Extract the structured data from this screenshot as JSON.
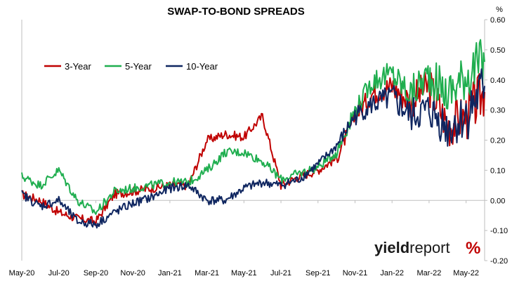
{
  "chart_data": {
    "type": "line",
    "title": "SWAP-TO-BOND SPREADS",
    "yunit": "%",
    "ylim": [
      -0.2,
      0.6
    ],
    "yticks": [
      "-0.20",
      "-0.10",
      "0.00",
      "0.10",
      "0.20",
      "0.30",
      "0.40",
      "0.50",
      "0.60"
    ],
    "xticks": [
      "May-20",
      "Jul-20",
      "Sep-20",
      "Nov-20",
      "Jan-21",
      "Mar-21",
      "May-21",
      "Jul-21",
      "Sep-21",
      "Nov-21",
      "Jan-22",
      "Mar-22",
      "May-22"
    ],
    "x_months": [
      "May-20",
      "Jun-20",
      "Jul-20",
      "Aug-20",
      "Sep-20",
      "Oct-20",
      "Nov-20",
      "Dec-20",
      "Jan-21",
      "Feb-21",
      "Mar-21",
      "Apr-21",
      "May-21",
      "Jun-21",
      "Jul-21",
      "Aug-21",
      "Sep-21",
      "Oct-21",
      "Nov-21",
      "Dec-21",
      "Jan-22",
      "Feb-22",
      "Mar-22",
      "Apr-22",
      "May-22",
      "Jun-22"
    ],
    "grid": false,
    "legend_position": "top-left",
    "series": [
      {
        "name": "3-Year",
        "color": "#c00000",
        "values": [
          0.02,
          0.0,
          -0.04,
          -0.06,
          -0.07,
          0.02,
          0.03,
          0.04,
          0.05,
          0.05,
          0.2,
          0.22,
          0.21,
          0.28,
          0.05,
          0.08,
          0.1,
          0.14,
          0.28,
          0.36,
          0.38,
          0.33,
          0.38,
          0.25,
          0.28,
          0.36
        ]
      },
      {
        "name": "5-Year",
        "color": "#1fae4f",
        "values": [
          0.08,
          0.05,
          0.1,
          0.0,
          -0.04,
          0.03,
          0.04,
          0.05,
          0.06,
          0.06,
          0.1,
          0.16,
          0.16,
          0.13,
          0.07,
          0.09,
          0.11,
          0.16,
          0.3,
          0.4,
          0.42,
          0.35,
          0.42,
          0.35,
          0.42,
          0.46
        ]
      },
      {
        "name": "10-Year",
        "color": "#0f2660",
        "values": [
          0.02,
          -0.02,
          0.0,
          -0.07,
          -0.08,
          -0.04,
          -0.01,
          0.01,
          0.04,
          0.05,
          0.0,
          0.0,
          0.04,
          0.06,
          0.05,
          0.07,
          0.12,
          0.18,
          0.28,
          0.32,
          0.34,
          0.28,
          0.3,
          0.24,
          0.28,
          0.38
        ]
      }
    ]
  },
  "logo": {
    "part1": "yield",
    "part2": "report",
    "mark": "%"
  }
}
